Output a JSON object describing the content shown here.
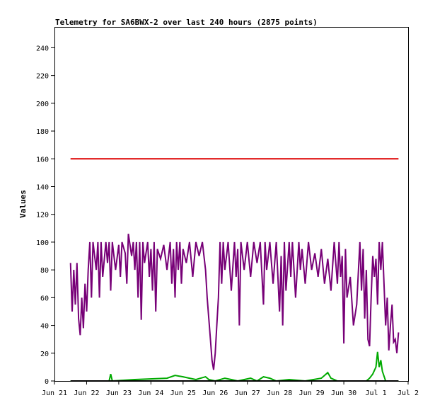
{
  "chart_data": {
    "type": "line",
    "title": "Telemetry for SA6BWX-2 over last 240 hours (2875 points)",
    "xlabel": "",
    "ylabel": "Values",
    "ylim": [
      0,
      255
    ],
    "yticks": [
      0,
      20,
      40,
      60,
      80,
      100,
      120,
      140,
      160,
      180,
      200,
      220,
      240
    ],
    "x_tick_labels": [
      "Jun 21",
      "Jun 22",
      "Jun 23",
      "Jun 24",
      "Jun 25",
      "Jun 26",
      "Jun 27",
      "Jun 28",
      "Jun 29",
      "Jun 30",
      "Jul 1",
      "Jul 2"
    ],
    "xlim_days": [
      0,
      11
    ],
    "grid": false,
    "series": [
      {
        "color": "#dd0000",
        "points": [
          [
            0.5,
            160
          ],
          [
            10.7,
            160
          ]
        ]
      },
      {
        "color": "#770077",
        "points": [
          [
            0.5,
            85
          ],
          [
            0.55,
            50
          ],
          [
            0.6,
            80
          ],
          [
            0.65,
            55
          ],
          [
            0.7,
            85
          ],
          [
            0.75,
            45
          ],
          [
            0.8,
            33
          ],
          [
            0.85,
            60
          ],
          [
            0.9,
            38
          ],
          [
            0.95,
            70
          ],
          [
            1.0,
            50
          ],
          [
            1.05,
            80
          ],
          [
            1.1,
            100
          ],
          [
            1.15,
            60
          ],
          [
            1.2,
            100
          ],
          [
            1.3,
            80
          ],
          [
            1.35,
            100
          ],
          [
            1.4,
            60
          ],
          [
            1.45,
            100
          ],
          [
            1.5,
            75
          ],
          [
            1.6,
            100
          ],
          [
            1.65,
            85
          ],
          [
            1.7,
            100
          ],
          [
            1.75,
            65
          ],
          [
            1.8,
            100
          ],
          [
            1.9,
            80
          ],
          [
            2.0,
            98
          ],
          [
            2.05,
            75
          ],
          [
            2.1,
            100
          ],
          [
            2.2,
            92
          ],
          [
            2.25,
            70
          ],
          [
            2.3,
            106
          ],
          [
            2.4,
            90
          ],
          [
            2.45,
            100
          ],
          [
            2.5,
            80
          ],
          [
            2.55,
            100
          ],
          [
            2.6,
            60
          ],
          [
            2.65,
            100
          ],
          [
            2.7,
            44
          ],
          [
            2.75,
            100
          ],
          [
            2.8,
            85
          ],
          [
            2.9,
            100
          ],
          [
            2.95,
            75
          ],
          [
            3.0,
            95
          ],
          [
            3.05,
            65
          ],
          [
            3.1,
            100
          ],
          [
            3.15,
            50
          ],
          [
            3.2,
            95
          ],
          [
            3.3,
            88
          ],
          [
            3.4,
            98
          ],
          [
            3.5,
            80
          ],
          [
            3.6,
            100
          ],
          [
            3.65,
            70
          ],
          [
            3.7,
            95
          ],
          [
            3.75,
            60
          ],
          [
            3.8,
            100
          ],
          [
            3.85,
            80
          ],
          [
            3.9,
            100
          ],
          [
            3.95,
            70
          ],
          [
            4.0,
            95
          ],
          [
            4.1,
            85
          ],
          [
            4.2,
            100
          ],
          [
            4.3,
            75
          ],
          [
            4.4,
            100
          ],
          [
            4.5,
            90
          ],
          [
            4.6,
            100
          ],
          [
            4.7,
            80
          ],
          [
            4.75,
            60
          ],
          [
            4.8,
            45
          ],
          [
            4.85,
            30
          ],
          [
            4.9,
            15
          ],
          [
            4.95,
            8
          ],
          [
            5.0,
            20
          ],
          [
            5.05,
            40
          ],
          [
            5.1,
            60
          ],
          [
            5.15,
            100
          ],
          [
            5.2,
            70
          ],
          [
            5.25,
            100
          ],
          [
            5.3,
            80
          ],
          [
            5.4,
            100
          ],
          [
            5.5,
            65
          ],
          [
            5.6,
            100
          ],
          [
            5.65,
            75
          ],
          [
            5.7,
            95
          ],
          [
            5.75,
            40
          ],
          [
            5.8,
            100
          ],
          [
            5.9,
            80
          ],
          [
            6.0,
            100
          ],
          [
            6.1,
            75
          ],
          [
            6.2,
            100
          ],
          [
            6.3,
            85
          ],
          [
            6.4,
            100
          ],
          [
            6.5,
            55
          ],
          [
            6.55,
            100
          ],
          [
            6.6,
            80
          ],
          [
            6.7,
            100
          ],
          [
            6.8,
            70
          ],
          [
            6.9,
            100
          ],
          [
            7.0,
            50
          ],
          [
            7.05,
            90
          ],
          [
            7.1,
            40
          ],
          [
            7.15,
            100
          ],
          [
            7.2,
            65
          ],
          [
            7.3,
            100
          ],
          [
            7.35,
            75
          ],
          [
            7.4,
            100
          ],
          [
            7.5,
            60
          ],
          [
            7.6,
            100
          ],
          [
            7.65,
            80
          ],
          [
            7.7,
            95
          ],
          [
            7.8,
            70
          ],
          [
            7.9,
            100
          ],
          [
            8.0,
            80
          ],
          [
            8.1,
            92
          ],
          [
            8.2,
            75
          ],
          [
            8.3,
            95
          ],
          [
            8.4,
            70
          ],
          [
            8.5,
            88
          ],
          [
            8.6,
            65
          ],
          [
            8.7,
            100
          ],
          [
            8.8,
            70
          ],
          [
            8.85,
            100
          ],
          [
            8.9,
            75
          ],
          [
            8.95,
            90
          ],
          [
            9.0,
            27
          ],
          [
            9.05,
            95
          ],
          [
            9.1,
            60
          ],
          [
            9.2,
            75
          ],
          [
            9.3,
            40
          ],
          [
            9.4,
            55
          ],
          [
            9.5,
            100
          ],
          [
            9.55,
            65
          ],
          [
            9.6,
            95
          ],
          [
            9.65,
            45
          ],
          [
            9.7,
            80
          ],
          [
            9.75,
            30
          ],
          [
            9.8,
            25
          ],
          [
            9.85,
            60
          ],
          [
            9.9,
            90
          ],
          [
            9.95,
            75
          ],
          [
            10.0,
            88
          ],
          [
            10.05,
            55
          ],
          [
            10.1,
            100
          ],
          [
            10.15,
            80
          ],
          [
            10.2,
            100
          ],
          [
            10.25,
            70
          ],
          [
            10.3,
            40
          ],
          [
            10.35,
            60
          ],
          [
            10.4,
            22
          ],
          [
            10.45,
            40
          ],
          [
            10.5,
            55
          ],
          [
            10.55,
            28
          ],
          [
            10.6,
            30
          ],
          [
            10.65,
            20
          ],
          [
            10.7,
            35
          ]
        ]
      },
      {
        "color": "#00aa00",
        "points": [
          [
            0.5,
            0
          ],
          [
            1.7,
            0
          ],
          [
            1.75,
            5
          ],
          [
            1.8,
            0
          ],
          [
            2.5,
            1
          ],
          [
            3.5,
            2
          ],
          [
            3.75,
            4
          ],
          [
            4.0,
            3
          ],
          [
            4.2,
            2
          ],
          [
            4.4,
            1
          ],
          [
            4.7,
            3
          ],
          [
            4.8,
            1
          ],
          [
            5.0,
            0
          ],
          [
            5.3,
            2
          ],
          [
            5.5,
            1
          ],
          [
            5.7,
            0
          ],
          [
            6.1,
            2
          ],
          [
            6.3,
            0
          ],
          [
            6.5,
            3
          ],
          [
            6.7,
            2
          ],
          [
            6.9,
            0
          ],
          [
            7.3,
            1
          ],
          [
            7.8,
            0
          ],
          [
            8.3,
            2
          ],
          [
            8.5,
            6
          ],
          [
            8.6,
            2
          ],
          [
            8.8,
            0
          ],
          [
            9.7,
            0
          ],
          [
            9.8,
            2
          ],
          [
            9.9,
            5
          ],
          [
            10.0,
            10
          ],
          [
            10.05,
            21
          ],
          [
            10.1,
            10
          ],
          [
            10.15,
            15
          ],
          [
            10.2,
            7
          ],
          [
            10.3,
            0
          ],
          [
            10.7,
            0
          ]
        ]
      },
      {
        "color": "#000000",
        "points": [
          [
            0.5,
            0
          ],
          [
            10.7,
            0
          ]
        ]
      }
    ]
  }
}
